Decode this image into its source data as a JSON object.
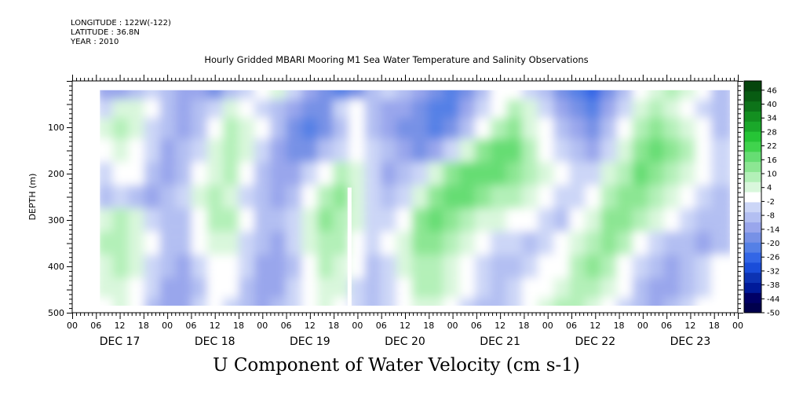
{
  "header": {
    "longitude": "LONGITUDE : 122W(-122)",
    "latitude": "LATITUDE : 36.8N",
    "year": "YEAR : 2010"
  },
  "chart_data": {
    "type": "heatmap",
    "title": "Hourly Gridded MBARI Mooring M1 Sea Water Temperature and Salinity Observations",
    "xlabel": "U Component of Water Velocity (cm s-1)",
    "ylabel": "DEPTH (m)",
    "x_range_hours": [
      0,
      168
    ],
    "x_axis_start": "DEC 17 00",
    "hour_tick_labels": [
      "00",
      "06",
      "12",
      "18"
    ],
    "day_labels": [
      "DEC 17",
      "DEC 18",
      "DEC 19",
      "DEC 20",
      "DEC 21",
      "DEC 22",
      "DEC 23"
    ],
    "ylim": [
      500,
      0
    ],
    "y_ticks": [
      100,
      200,
      300,
      400,
      500
    ],
    "data_extent": {
      "hours": [
        7,
        166
      ],
      "depth_m": [
        20,
        485
      ]
    },
    "gap_hours": [
      69.5,
      70.5
    ],
    "colorbar": {
      "labels": [
        "46",
        "40",
        "34",
        "28",
        "22",
        "16",
        "10",
        "4",
        "-2",
        "-8",
        "-14",
        "-20",
        "-26",
        "-32",
        "-38",
        "-44",
        "-50"
      ],
      "range": [
        -50,
        50
      ],
      "colors": [
        "#00004d",
        "#000066",
        "#001a99",
        "#0d33b3",
        "#1a4dd9",
        "#3366e6",
        "#5580e6",
        "#7791e6",
        "#99a6ec",
        "#b3bff2",
        "#ccd6f7",
        "#ffffff",
        "#d9f7dc",
        "#b3f0b8",
        "#8ce693",
        "#66dd73",
        "#40d34d",
        "#26c436",
        "#1aa82a",
        "#138f20",
        "#0d7319",
        "#085c12",
        "#05450d"
      ]
    },
    "pattern_description": "U velocity varies with depth and time; positive values green, negative blue",
    "rows_by_depth": [
      {
        "depth": 20,
        "values": [
          -12,
          -14,
          -10,
          -6,
          -8,
          -12,
          -14,
          -16,
          -10,
          -4,
          2,
          6,
          -4,
          -12,
          -16,
          -20,
          -16,
          -10,
          -6,
          -10,
          -14,
          -18,
          -20,
          -16,
          -8,
          -2,
          2,
          -4,
          -10,
          -16,
          -20,
          -24,
          -16,
          -8,
          -2,
          4,
          8,
          4,
          -2,
          -8
        ]
      },
      {
        "depth": 60,
        "values": [
          -6,
          4,
          6,
          -2,
          -8,
          -14,
          -10,
          -4,
          4,
          2,
          -4,
          -8,
          -14,
          -18,
          -16,
          -6,
          -2,
          -8,
          -12,
          -14,
          -16,
          -20,
          -22,
          -14,
          -6,
          2,
          8,
          4,
          -6,
          -12,
          -18,
          -20,
          -14,
          -4,
          4,
          8,
          6,
          2,
          -4,
          -10
        ]
      },
      {
        "depth": 100,
        "values": [
          4,
          8,
          4,
          -4,
          -10,
          -14,
          -8,
          2,
          8,
          6,
          -2,
          -10,
          -16,
          -20,
          -18,
          -10,
          -2,
          -8,
          -14,
          -16,
          -18,
          -20,
          -16,
          -8,
          2,
          10,
          12,
          6,
          -2,
          -8,
          -14,
          -16,
          -8,
          2,
          10,
          12,
          8,
          4,
          -2,
          -8
        ]
      },
      {
        "depth": 150,
        "values": [
          2,
          6,
          2,
          -6,
          -12,
          -10,
          -4,
          4,
          8,
          4,
          -6,
          -12,
          -18,
          -16,
          -10,
          -4,
          2,
          -4,
          -10,
          -14,
          -16,
          -12,
          -4,
          6,
          12,
          18,
          16,
          10,
          2,
          -4,
          -10,
          -12,
          -4,
          6,
          14,
          16,
          12,
          8,
          2,
          -4
        ]
      },
      {
        "depth": 200,
        "values": [
          -4,
          2,
          -2,
          -8,
          -12,
          -10,
          -2,
          6,
          10,
          2,
          -8,
          -14,
          -12,
          -6,
          2,
          8,
          4,
          -4,
          -12,
          -10,
          -4,
          4,
          12,
          16,
          18,
          16,
          14,
          10,
          4,
          -2,
          -6,
          -4,
          4,
          10,
          16,
          14,
          10,
          6,
          0,
          -6
        ]
      },
      {
        "depth": 250,
        "values": [
          -8,
          -4,
          -8,
          -12,
          -10,
          -4,
          4,
          10,
          6,
          -4,
          -10,
          -12,
          -8,
          2,
          10,
          12,
          6,
          -4,
          -8,
          -4,
          6,
          14,
          18,
          16,
          12,
          10,
          8,
          6,
          0,
          -6,
          -4,
          2,
          10,
          14,
          12,
          8,
          6,
          2,
          -4,
          -8
        ]
      },
      {
        "depth": 300,
        "values": [
          6,
          10,
          4,
          -4,
          -10,
          -8,
          2,
          10,
          8,
          0,
          -8,
          -10,
          -4,
          6,
          12,
          10,
          4,
          -4,
          -6,
          2,
          12,
          16,
          14,
          10,
          6,
          4,
          2,
          -2,
          -6,
          -8,
          -2,
          6,
          12,
          14,
          10,
          4,
          0,
          -4,
          -8,
          -10
        ]
      },
      {
        "depth": 350,
        "values": [
          8,
          10,
          6,
          -2,
          -8,
          -10,
          -2,
          6,
          4,
          -4,
          -10,
          -12,
          -6,
          4,
          10,
          8,
          0,
          -6,
          -2,
          6,
          12,
          14,
          10,
          4,
          0,
          -4,
          -6,
          -8,
          -6,
          -2,
          4,
          10,
          12,
          8,
          2,
          -4,
          -8,
          -10,
          -12,
          -8
        ]
      },
      {
        "depth": 400,
        "values": [
          6,
          8,
          4,
          -4,
          -10,
          -12,
          -6,
          2,
          0,
          -6,
          -12,
          -14,
          -8,
          2,
          8,
          6,
          -2,
          -8,
          -4,
          4,
          10,
          10,
          6,
          0,
          -4,
          -8,
          -8,
          -6,
          -2,
          2,
          8,
          12,
          8,
          2,
          -4,
          -10,
          -12,
          -10,
          -6,
          -2
        ]
      },
      {
        "depth": 450,
        "values": [
          4,
          6,
          2,
          -6,
          -12,
          -14,
          -8,
          0,
          -2,
          -8,
          -12,
          -12,
          -6,
          2,
          6,
          4,
          -4,
          -10,
          -6,
          2,
          8,
          8,
          4,
          -2,
          -6,
          -8,
          -6,
          -2,
          2,
          6,
          10,
          10,
          4,
          -2,
          -8,
          -12,
          -12,
          -8,
          -4,
          0
        ]
      },
      {
        "depth": 485,
        "values": [
          2,
          4,
          0,
          -8,
          -12,
          -12,
          -6,
          0,
          -4,
          -10,
          -12,
          -10,
          -4,
          2,
          4,
          2,
          -6,
          -10,
          -6,
          2,
          6,
          6,
          2,
          -4,
          -8,
          -8,
          -4,
          0,
          4,
          8,
          10,
          6,
          0,
          -6,
          -10,
          -12,
          -10,
          -6,
          -2,
          2
        ]
      }
    ]
  }
}
